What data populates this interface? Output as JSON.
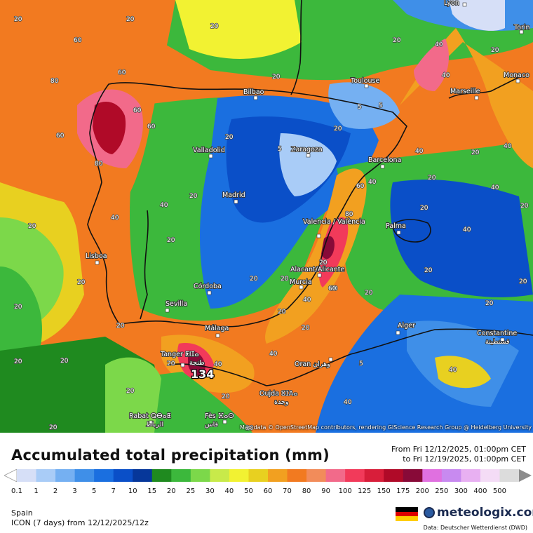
{
  "map": {
    "cities": [
      {
        "name": "Lyon"
      },
      {
        "name": "Torin"
      },
      {
        "name": "Toulouse"
      },
      {
        "name": "Monaco"
      },
      {
        "name": "Marseille"
      },
      {
        "name": "Bilbao"
      },
      {
        "name": "Valladolid"
      },
      {
        "name": "Zaragoza"
      },
      {
        "name": "Barcelona"
      },
      {
        "name": "Madrid"
      },
      {
        "name": "Lisboa"
      },
      {
        "name": "Valencia / València"
      },
      {
        "name": "Palma"
      },
      {
        "name": "Alacant/Alicante"
      },
      {
        "name": "Murcia"
      },
      {
        "name": "Córdoba"
      },
      {
        "name": "Sevilla"
      },
      {
        "name": "Málaga"
      },
      {
        "name": "Tanger ⵟⵏⵊⴰ"
      },
      {
        "name": "Alger"
      },
      {
        "name": "Constantine"
      },
      {
        "name": "قسنطينة"
      },
      {
        "name": "Oran وهران"
      },
      {
        "name": "Oujda ⵓⵊⴷⴰ"
      },
      {
        "name": "وجدة"
      },
      {
        "name": "Rabat ⵕⴱⴰⵟ"
      },
      {
        "name": "الرباط"
      },
      {
        "name": "Fès ⴼⴰⵙ"
      },
      {
        "name": "فاس"
      },
      {
        "name": "طنجة"
      }
    ],
    "contour_labels": [
      "60",
      "80",
      "60",
      "60",
      "80",
      "60",
      "20",
      "20",
      "20",
      "40",
      "40",
      "20",
      "20",
      "20",
      "20",
      "5",
      "20",
      "5",
      "5",
      "40",
      "20",
      "60",
      "40",
      "40",
      "80",
      "20",
      "60",
      "40",
      "20",
      "20",
      "20",
      "20",
      "40",
      "20",
      "20",
      "20",
      "20",
      "5",
      "20",
      "40",
      "20",
      "60",
      "40",
      "20",
      "40",
      "20",
      "40",
      "20",
      "5",
      "20",
      "20",
      "20",
      "20",
      "20",
      "20",
      "60",
      "20",
      "20",
      "40",
      "40",
      "20",
      "20",
      "20",
      "40"
    ],
    "max_value": "134",
    "attribution": "Map data © OpenStreetMap contributors, rendering GIScience Research Group @ Heidelberg University"
  },
  "legend": {
    "title": "Accumulated total precipitation (mm)",
    "period_from": "From Fri 12/12/2025, 01:00pm CET",
    "period_to": "to Fri 12/19/2025, 01:00pm CET",
    "ticks": [
      "0.1",
      "1",
      "2",
      "3",
      "5",
      "7",
      "10",
      "15",
      "20",
      "25",
      "30",
      "40",
      "50",
      "60",
      "70",
      "80",
      "90",
      "100",
      "125",
      "150",
      "175",
      "200",
      "250",
      "300",
      "400",
      "500"
    ],
    "colors": [
      "#d6dff7",
      "#a9ccf7",
      "#75b0f2",
      "#3f8fe8",
      "#1a6fe0",
      "#0a4fc8",
      "#06379a",
      "#1f8a1f",
      "#3cb83c",
      "#7cd84a",
      "#c8ea4a",
      "#f2f232",
      "#e8d020",
      "#f2a020",
      "#f27a20",
      "#f28c5a",
      "#f26a8a",
      "#f23a5a",
      "#d81e3a",
      "#b00a28",
      "#880a38",
      "#e070e0",
      "#c88af0",
      "#e8b0f2",
      "#f4dcf6",
      "#dcdcdc"
    ],
    "region": "Spain",
    "model": "ICON (7 days) from  12/12/2025/12z",
    "brand": "meteologix.com",
    "data_source": "Data: Deutscher Wetterdienst (DWD)",
    "flag_colors": [
      "#000000",
      "#dd0000",
      "#ffce00"
    ]
  }
}
